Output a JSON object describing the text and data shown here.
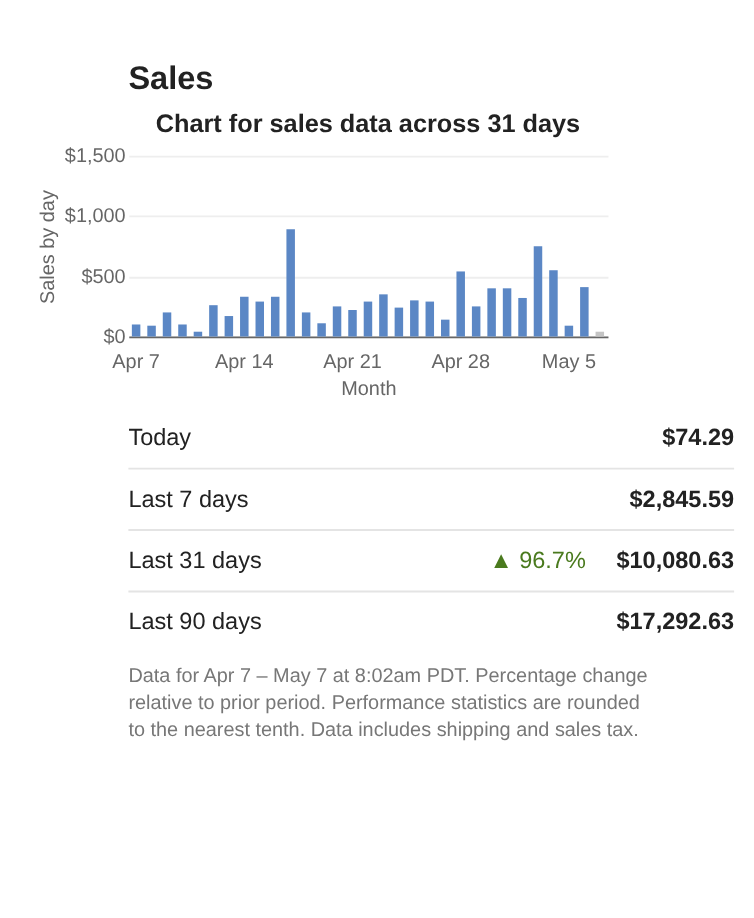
{
  "chart_data": [
    {
      "type": "other",
      "title": "Sales"
    },
    {
      "type": "bar",
      "title": "Chart for sales data across 31 days",
      "xlabel": "Month",
      "ylabel": "Sales by day",
      "categories": [
        "Apr 7",
        null,
        null,
        null,
        null,
        null,
        null,
        "Apr 14",
        null,
        null,
        null,
        null,
        null,
        null,
        "Apr 21",
        null,
        null,
        null,
        null,
        null,
        null,
        "Apr 28",
        null,
        null,
        null,
        null,
        null,
        null,
        "May 5",
        null,
        null
      ],
      "values": [
        100,
        90,
        200,
        100,
        40,
        260,
        170,
        330,
        290,
        330,
        890,
        200,
        110,
        250,
        220,
        290,
        350,
        240,
        300,
        290,
        140,
        540,
        250,
        400,
        400,
        320,
        750,
        550,
        90,
        410,
        40
      ],
      "colors": [
        "#5b87c5",
        "#5b87c5",
        "#5b87c5",
        "#5b87c5",
        "#5b87c5",
        "#5b87c5",
        "#5b87c5",
        "#5b87c5",
        "#5b87c5",
        "#5b87c5",
        "#5b87c5",
        "#5b87c5",
        "#5b87c5",
        "#5b87c5",
        "#5b87c5",
        "#5b87c5",
        "#5b87c5",
        "#5b87c5",
        "#5b87c5",
        "#5b87c5",
        "#5b87c5",
        "#5b87c5",
        "#5b87c5",
        "#5b87c5",
        "#5b87c5",
        "#5b87c5",
        "#5b87c5",
        "#5b87c5",
        "#5b87c5",
        "#5b87c5",
        "#c4c4c4"
      ],
      "ylim": [
        0,
        1500
      ],
      "yticks": [
        {
          "value": 0,
          "label": "$0"
        },
        {
          "value": 500,
          "label": "$500"
        },
        {
          "value": 1000,
          "label": "$1,000"
        },
        {
          "value": 1500,
          "label": "$1,500"
        }
      ],
      "grid": "y"
    },
    {
      "type": "other",
      "categories": [
        "Today",
        "Last 7 days",
        "Last 31 days",
        "Last 90 days"
      ],
      "value_labels": [
        "$74.29",
        "$2,845.59",
        "$10,080.63",
        "$17,292.63"
      ],
      "annotations": [
        "▲ 96.7%",
        "Data for Apr 7 – May 7 at 8:02am PDT. Percentage change relative to prior period. Performance statistics are rounded to the nearest tenth. Data includes shipping and sales tax."
      ]
    }
  ]
}
